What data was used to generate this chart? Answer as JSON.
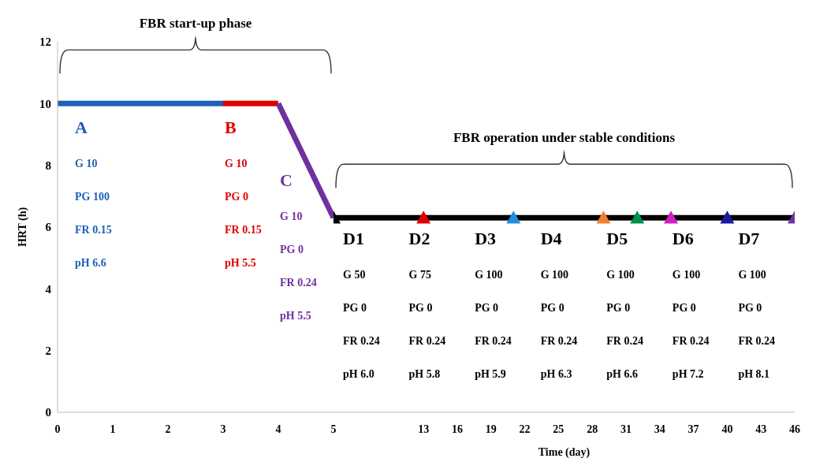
{
  "chart_data": [
    {
      "type": "line",
      "ylabel": "HRT (h)",
      "xlim": [
        0,
        5
      ],
      "xticks": [
        0,
        1,
        2,
        3,
        4,
        5
      ],
      "ylim": [
        0,
        12
      ],
      "yticks": [
        0,
        2,
        4,
        6,
        8,
        10,
        12
      ],
      "line_style": "solid",
      "series": [
        {
          "color": "#1e60b4",
          "x": [
            0,
            3
          ],
          "values": [
            10,
            10
          ]
        },
        {
          "color": "#e00000",
          "x": [
            3,
            4
          ],
          "values": [
            10,
            10
          ]
        },
        {
          "color": "#7030a0",
          "x": [
            4,
            5
          ],
          "values": [
            10,
            6.3
          ]
        }
      ],
      "annotations": [
        "FBR start-up phase",
        "A",
        "G 10",
        "PG 100",
        "FR 0.15",
        "pH 6.6",
        "B",
        "G 10",
        "PG 0",
        "FR 0.15",
        "pH 5.5",
        "C",
        "G 10",
        "PG 0",
        "FR 0.24",
        "pH 5.5"
      ]
    },
    {
      "type": "line",
      "xlabel": "Time (day)",
      "xlim": [
        5,
        46
      ],
      "xticks": [
        13,
        16,
        19,
        22,
        25,
        28,
        31,
        34,
        37,
        40,
        43,
        46
      ],
      "ylim": [
        0,
        12
      ],
      "yticks": [
        0,
        2,
        4,
        6,
        8,
        10,
        12
      ],
      "tick_labels": "x",
      "line_style": "solid",
      "series": [
        {
          "color": "#000000",
          "x": [
            5,
            46
          ],
          "values": [
            6.3,
            6.3
          ]
        },
        {
          "type": "scatter",
          "marker": "triangle",
          "color": "#000000",
          "colors": [
            "#000000",
            "#e00000",
            "#1e90d8",
            "#f08030",
            "#00904a",
            "#d020c0",
            "#1a1aa0",
            "#7030a0"
          ],
          "x": [
            5,
            13,
            21,
            29,
            32,
            35,
            40,
            46
          ],
          "values": [
            6.3,
            6.3,
            6.3,
            6.3,
            6.3,
            6.3,
            6.3,
            6.3
          ]
        }
      ],
      "annotations": [
        "FBR operation under stable conditions",
        "D1",
        "G 50",
        "PG 0",
        "FR 0.24",
        "pH 6.0",
        "D2",
        "G 75",
        "PG 0",
        "FR 0.24",
        "pH 5.8",
        "D3",
        "G 100",
        "PG 0",
        "FR 0.24",
        "pH 5.9",
        "D4",
        "G 100",
        "PG 0",
        "FR 0.24",
        "pH 6.3",
        "D5",
        "G 100",
        "PG 0",
        "FR 0.24",
        "pH 6.6",
        "D6",
        "G 100",
        "PG 0",
        "FR 0.24",
        "pH 7.2",
        "D7",
        "G 100",
        "PG 0",
        "FR 0.24",
        "pH 8.1"
      ]
    }
  ]
}
